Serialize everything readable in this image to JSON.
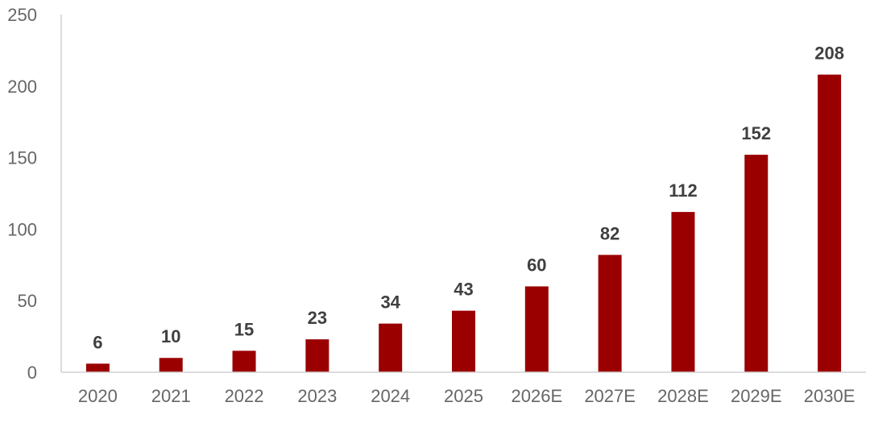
{
  "chart_data": {
    "type": "bar",
    "title": "",
    "xlabel": "",
    "ylabel": "",
    "categories": [
      "2020",
      "2021",
      "2022",
      "2023",
      "2024",
      "2025",
      "2026E",
      "2027E",
      "2028E",
      "2029E",
      "2030E"
    ],
    "values": [
      6,
      10,
      15,
      23,
      34,
      43,
      60,
      82,
      112,
      152,
      208
    ],
    "data_labels": [
      "6",
      "10",
      "15",
      "23",
      "34",
      "43",
      "60",
      "82",
      "112",
      "152",
      "208"
    ],
    "ylim": [
      0,
      250
    ],
    "yticks": [
      "0",
      "50",
      "100",
      "150",
      "200",
      "250"
    ],
    "grid": false,
    "legend": "none",
    "colors": {
      "bar": "#9b0000",
      "axis": "#d0d0d0",
      "tick_text": "#666666",
      "label_text": "#404040"
    }
  }
}
